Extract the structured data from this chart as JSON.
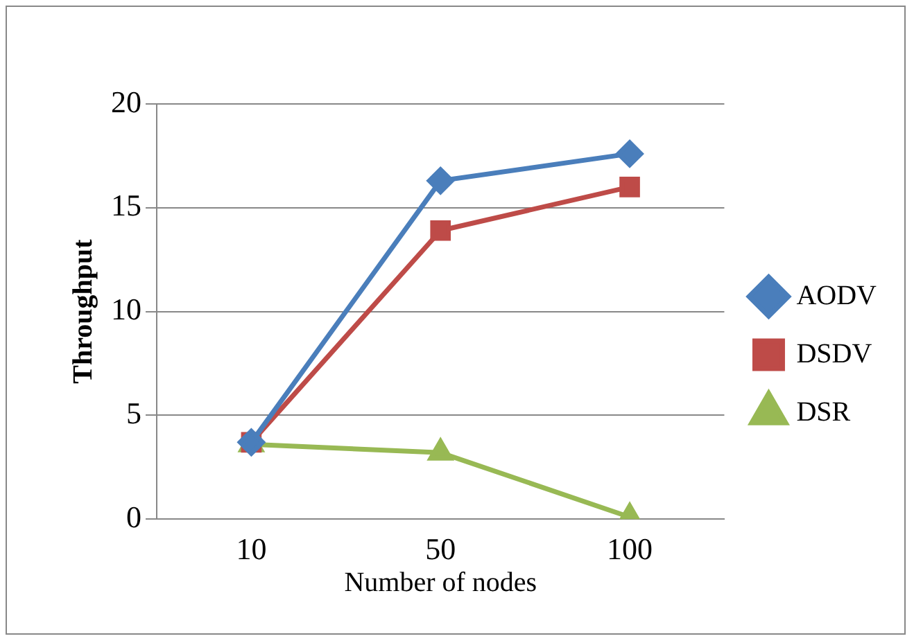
{
  "chart_data": {
    "type": "line",
    "xlabel": "Number of nodes",
    "ylabel": "Throughput",
    "categories": [
      "10",
      "50",
      "100"
    ],
    "series": [
      {
        "name": "AODV",
        "color": "#4a7ebb",
        "marker": "diamond",
        "values": [
          3.7,
          16.3,
          17.6
        ]
      },
      {
        "name": "DSDV",
        "color": "#be4b48",
        "marker": "square",
        "values": [
          3.7,
          13.9,
          16.0
        ]
      },
      {
        "name": "DSR",
        "color": "#98b954",
        "marker": "triangle",
        "values": [
          3.6,
          3.2,
          0.1
        ]
      }
    ],
    "ylim": [
      0,
      20
    ],
    "yticks": [
      0,
      5,
      10,
      15,
      20
    ],
    "grid": "y",
    "legend": "right"
  }
}
